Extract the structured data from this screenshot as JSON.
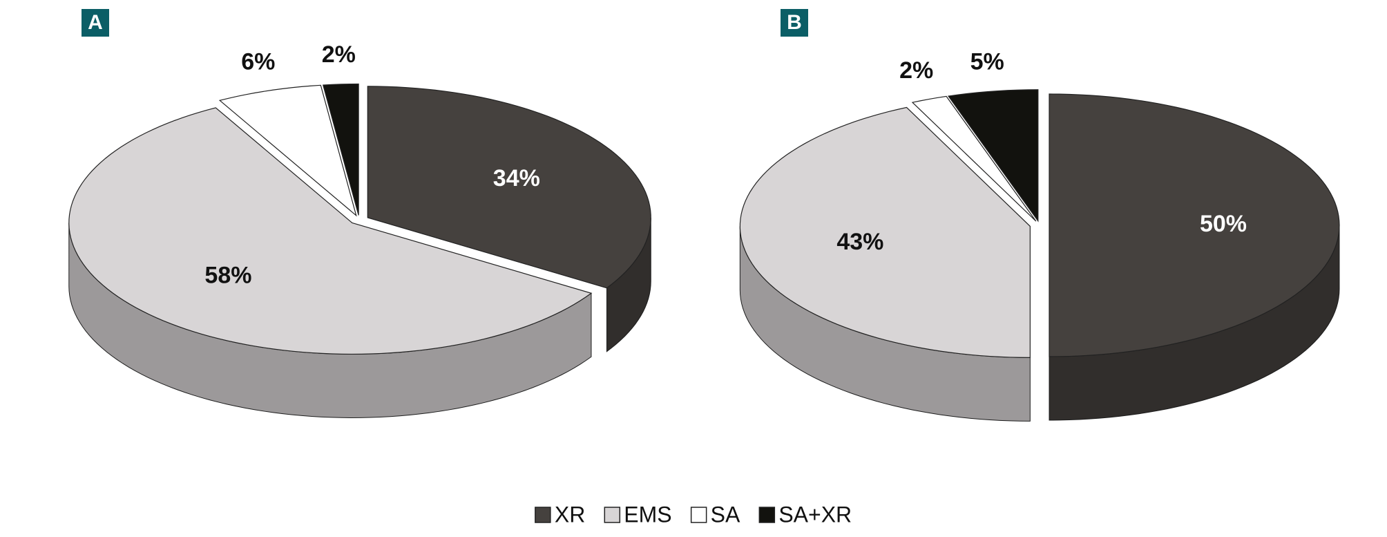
{
  "chart_data": [
    {
      "type": "pie",
      "title": "A",
      "categories": [
        "XR",
        "EMS",
        "SA",
        "SA+XR"
      ],
      "values": [
        34,
        58,
        6,
        2
      ],
      "value_labels": [
        "34%",
        "58%",
        "6%",
        "2%"
      ],
      "colors": [
        "#45413e",
        "#d8d5d6",
        "#ffffff",
        "#12120e"
      ]
    },
    {
      "type": "pie",
      "title": "B",
      "categories": [
        "XR",
        "EMS",
        "SA",
        "SA+XR"
      ],
      "values": [
        50,
        43,
        2,
        5
      ],
      "value_labels": [
        "50%",
        "43%",
        "2%",
        "5%"
      ],
      "colors": [
        "#45413e",
        "#d8d5d6",
        "#ffffff",
        "#12120e"
      ]
    }
  ]
}
